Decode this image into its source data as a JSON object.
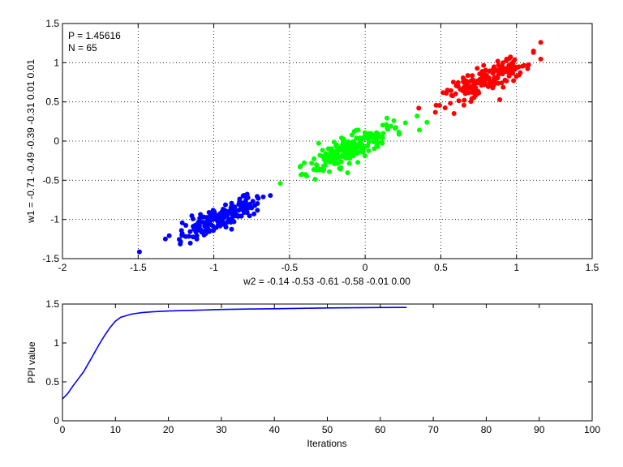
{
  "figure": {
    "background": "#ffffff"
  },
  "chart_data": [
    {
      "type": "scatter",
      "title": "",
      "xlabel": "w2 = -0.14  -0.53  -0.61  -0.58  -0.01  0.00",
      "ylabel": "w1 = -0.71  -0.49  -0.39  -0.31  0.01  0.01",
      "xlim": [
        -2,
        1.5
      ],
      "ylim": [
        -1.5,
        1.5
      ],
      "xticks": [
        "-2",
        "-1.5",
        "-1",
        "-0.5",
        "0",
        "0.5",
        "1",
        "1.5"
      ],
      "yticks": [
        "-1.5",
        "-1",
        "-0.5",
        "0",
        "0.5",
        "1",
        "1.5"
      ],
      "grid": true,
      "annotations": [
        "P = 1.45616",
        "N = 65"
      ],
      "clusters": [
        {
          "color": "#0000ff",
          "count": 180,
          "center": [
            -0.95,
            -0.97
          ],
          "spread_major": 0.2,
          "spread_minor": 0.06,
          "x_range": [
            -1.57,
            -0.5
          ]
        },
        {
          "color": "#00ff00",
          "count": 200,
          "center": [
            -0.1,
            -0.1
          ],
          "spread_major": 0.22,
          "spread_minor": 0.06,
          "x_range": [
            -0.72,
            0.45
          ]
        },
        {
          "color": "#ff0000",
          "count": 190,
          "center": [
            0.8,
            0.78
          ],
          "spread_major": 0.2,
          "spread_minor": 0.06,
          "x_range": [
            0.17,
            1.16
          ]
        }
      ]
    },
    {
      "type": "line",
      "title": "",
      "xlabel": "Iterations",
      "ylabel": "PPI value",
      "xlim": [
        0,
        100
      ],
      "ylim": [
        0,
        1.5
      ],
      "xticks": [
        "0",
        "10",
        "20",
        "30",
        "40",
        "50",
        "60",
        "70",
        "80",
        "90",
        "100"
      ],
      "yticks": [
        "0",
        "0.5",
        "1",
        "1.5"
      ],
      "grid": false,
      "series": [
        {
          "color": "#0000ff",
          "x": [
            0,
            1,
            2,
            3,
            4,
            5,
            6,
            7,
            8,
            9,
            10,
            11,
            12,
            13,
            14,
            15,
            17,
            20,
            25,
            30,
            35,
            40,
            45,
            50,
            55,
            60,
            65
          ],
          "y": [
            0.28,
            0.35,
            0.45,
            0.54,
            0.63,
            0.75,
            0.87,
            0.99,
            1.1,
            1.2,
            1.28,
            1.33,
            1.35,
            1.37,
            1.38,
            1.39,
            1.4,
            1.41,
            1.42,
            1.43,
            1.435,
            1.44,
            1.445,
            1.45,
            1.452,
            1.455,
            1.456
          ]
        }
      ]
    }
  ]
}
